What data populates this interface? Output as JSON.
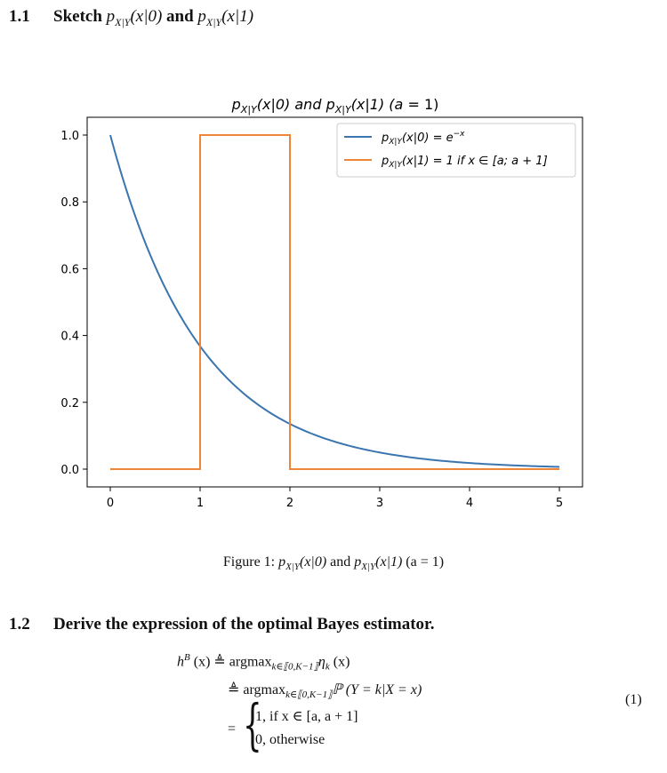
{
  "sections": [
    {
      "number": "1.1",
      "title_prefix": "Sketch",
      "title_math_1": "p",
      "title_math_1_sub": "X|Y",
      "title_math_1_arg": "(x|0)",
      "title_and": "and",
      "title_math_2": "p",
      "title_math_2_sub": "X|Y",
      "title_math_2_arg": "(x|1)"
    },
    {
      "number": "1.2",
      "title": "Derive the expression of the optimal Bayes estimator."
    }
  ],
  "figure": {
    "caption_prefix": "Figure 1:",
    "caption_p1": "p",
    "caption_sub1": "X|Y",
    "caption_arg1": "(x|0)",
    "caption_and": "and",
    "caption_p2": "p",
    "caption_sub2": "X|Y",
    "caption_arg2": "(x|1)",
    "caption_param": "(a = 1)"
  },
  "chart_data": {
    "type": "line",
    "title": "p_{X|Y}(x|0) and p_{X|Y}(x|1) (a = 1)",
    "title_parts": {
      "p": "p",
      "sub": "X|Y",
      "arg1": "(x|0) and ",
      "arg2": "(x|1) (",
      "a": "a",
      "eq": " = 1)"
    },
    "xlim": [
      0,
      5
    ],
    "ylim": [
      0,
      1
    ],
    "xticks": [
      "0",
      "1",
      "2",
      "3",
      "4",
      "5"
    ],
    "yticks": [
      "0.0",
      "0.2",
      "0.4",
      "0.6",
      "0.8",
      "1.0"
    ],
    "grid": false,
    "legend_position": "upper-right",
    "series": [
      {
        "name": "p_{X|Y}(x|0) = e^{-x}",
        "legend_main": "p",
        "legend_sub": "X|Y",
        "legend_tail": "(x|0) = e",
        "legend_sup": "−x",
        "color": "#3b75af",
        "function": "exp(-x)",
        "x": [
          0,
          0.5,
          1,
          1.5,
          2,
          2.5,
          3,
          3.5,
          4,
          4.5,
          5
        ],
        "y": [
          1.0,
          0.607,
          0.368,
          0.223,
          0.135,
          0.082,
          0.05,
          0.03,
          0.018,
          0.011,
          0.007
        ]
      },
      {
        "name": "p_{X|Y}(x|1) = 1 if x ∈ [a; a + 1]",
        "legend_main": "p",
        "legend_sub": "X|Y",
        "legend_tail": "(x|1) = 1 if x ∈ [a; a + 1]",
        "color": "#ef8636",
        "x": [
          0,
          1,
          1,
          2,
          2,
          5
        ],
        "y": [
          0,
          0,
          1,
          1,
          0,
          0
        ]
      }
    ]
  },
  "equation": {
    "number": "(1)",
    "line1_lhs": "h",
    "line1_sup": "B",
    "line1_arg": "(x)",
    "defeq": "≜",
    "argmax": "argmax",
    "argmax_sub": "k∈⟦0,K−1⟧",
    "line1_rhs": "η",
    "line1_rhs_sub": "k",
    "line1_rhs_arg": "(x)",
    "line2_rhs": "ℙ (Y = k|X = x)",
    "equals": "=",
    "brace": "{",
    "case1": "1, if x ∈ [a, a + 1]",
    "case2": "0, otherwise"
  }
}
